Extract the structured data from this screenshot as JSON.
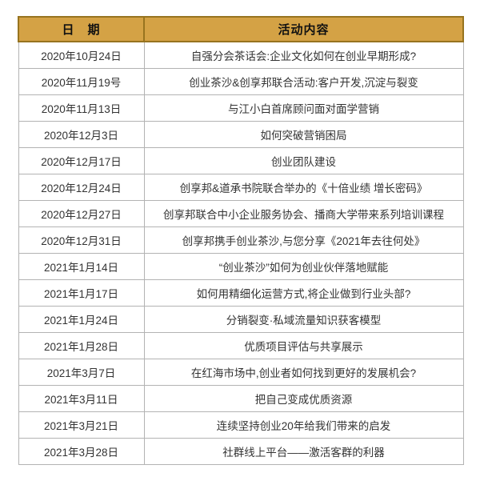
{
  "table": {
    "headers": [
      {
        "label": "日　期"
      },
      {
        "label": "活动内容"
      }
    ],
    "rows": [
      {
        "date": "2020年10月24日",
        "activity": "自强分会茶话会:企业文化如何在创业早期形成?"
      },
      {
        "date": "2020年11月19号",
        "activity": "创业茶沙&创享邦联合活动:客户开发,沉淀与裂变"
      },
      {
        "date": "2020年11月13日",
        "activity": "与江小白首席顾问面对面学营销"
      },
      {
        "date": "2020年12月3日",
        "activity": "如何突破营销困局"
      },
      {
        "date": "2020年12月17日",
        "activity": "创业团队建设"
      },
      {
        "date": "2020年12月24日",
        "activity": "创享邦&道承书院联合举办的《十倍业绩 增长密码》"
      },
      {
        "date": "2020年12月27日",
        "activity": "创享邦联合中小企业服务协会、播商大学带来系列培训课程"
      },
      {
        "date": "2020年12月31日",
        "activity": "创享邦携手创业茶沙,与您分享《2021年去往何处》"
      },
      {
        "date": "2021年1月14日",
        "activity": "“创业茶沙”如何为创业伙伴落地赋能"
      },
      {
        "date": "2021年1月17日",
        "activity": "如何用精细化运营方式,将企业做到行业头部?"
      },
      {
        "date": "2021年1月24日",
        "activity": "分销裂变·私域流量知识获客模型"
      },
      {
        "date": "2021年1月28日",
        "activity": "优质项目评估与共享展示"
      },
      {
        "date": "2021年3月7日",
        "activity": "在红海市场中,创业者如何找到更好的发展机会?"
      },
      {
        "date": "2021年3月11日",
        "activity": "把自己变成优质资源"
      },
      {
        "date": "2021年3月21日",
        "activity": "连续坚持创业20年给我们带来的启发"
      },
      {
        "date": "2021年3月28日",
        "activity": "社群线上平台——激活客群的利器"
      }
    ]
  },
  "colors": {
    "header_bg": "#d4a245",
    "header_border": "#97741f",
    "grid_line": "#b3b3b3",
    "body_text": "#333333",
    "header_text": "#111111"
  }
}
